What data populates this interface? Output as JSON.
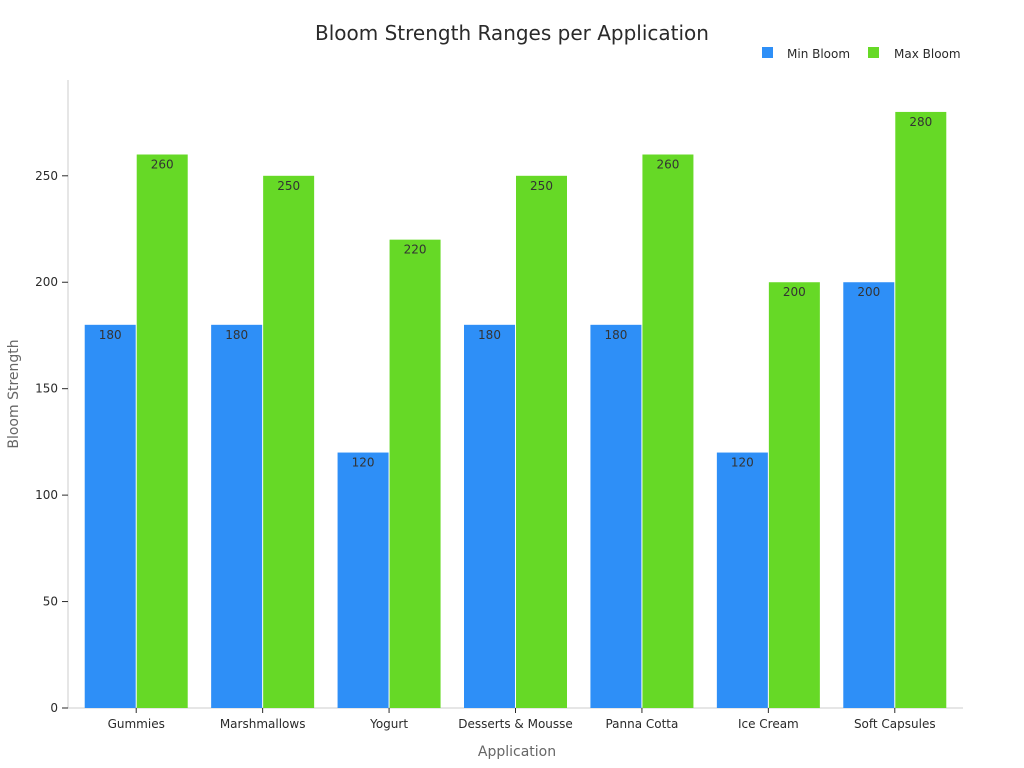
{
  "chart_data": {
    "type": "bar",
    "title": "Bloom Strength Ranges per Application",
    "xlabel": "Application",
    "ylabel": "Bloom Strength",
    "categories": [
      "Gummies",
      "Marshmallows",
      "Yogurt",
      "Desserts & Mousse",
      "Panna Cotta",
      "Ice Cream",
      "Soft Capsules"
    ],
    "series": [
      {
        "name": "Min Bloom",
        "color": "#2e8ff7",
        "values": [
          180,
          180,
          120,
          180,
          180,
          120,
          200
        ]
      },
      {
        "name": "Max Bloom",
        "color": "#66d926",
        "values": [
          260,
          250,
          220,
          250,
          260,
          200,
          280
        ]
      }
    ],
    "ylim": [
      0,
      295
    ],
    "yticks": [
      0,
      50,
      100,
      150,
      200,
      250
    ],
    "grid": false,
    "legend_position": "top-right",
    "data_labels": true
  }
}
